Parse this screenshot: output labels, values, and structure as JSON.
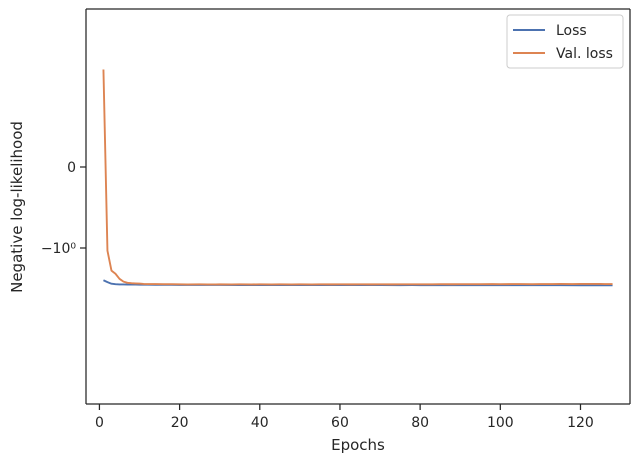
{
  "chart_data": {
    "type": "line",
    "title": "",
    "xlabel": "Epochs",
    "ylabel": "Negative log-likelihood",
    "xlim": [
      -3.35,
      132.35
    ],
    "x_ticks": [
      0,
      20,
      40,
      60,
      80,
      100,
      120
    ],
    "x_tick_labels": [
      "0",
      "20",
      "40",
      "60",
      "80",
      "100",
      "120"
    ],
    "y_scale": "symlog (linear threshold 1)",
    "y_ticks": [
      0,
      -1
    ],
    "y_tick_labels": [
      "0",
      "−10⁰"
    ],
    "grid": false,
    "legend_position": "top-right",
    "series": [
      {
        "name": "Loss",
        "color": "#4c72b0",
        "x": [
          1,
          2,
          3,
          4,
          5,
          6,
          7,
          8,
          9,
          10,
          11,
          12,
          14,
          16,
          18,
          20,
          22,
          25,
          30,
          35,
          40,
          45,
          50,
          55,
          60,
          65,
          70,
          75,
          78,
          80,
          85,
          90,
          95,
          100,
          105,
          110,
          115,
          120,
          125,
          128
        ],
        "y": [
          -2.5,
          -2.64,
          -2.76,
          -2.8,
          -2.815,
          -2.82,
          -2.825,
          -2.828,
          -2.831,
          -2.834,
          -2.836,
          -2.838,
          -2.842,
          -2.846,
          -2.849,
          -2.852,
          -2.854,
          -2.857,
          -2.86,
          -2.862,
          -2.864,
          -2.866,
          -2.868,
          -2.869,
          -2.87,
          -2.871,
          -2.872,
          -2.873,
          -2.868,
          -2.874,
          -2.875,
          -2.876,
          -2.877,
          -2.878,
          -2.879,
          -2.88,
          -2.881,
          -2.882,
          -2.883,
          -2.884
        ]
      },
      {
        "name": "Val. loss",
        "color": "#dd8452",
        "x": [
          1,
          2,
          3,
          4,
          5,
          6,
          7,
          8,
          9,
          10,
          11,
          12,
          14,
          16,
          18,
          20,
          22,
          25,
          27,
          29,
          30,
          33,
          35,
          38,
          40,
          43,
          45,
          48,
          50,
          53,
          55,
          58,
          60,
          63,
          65,
          68,
          70,
          73,
          75,
          78,
          80,
          83,
          85,
          88,
          90,
          93,
          95,
          98,
          100,
          103,
          105,
          108,
          110,
          113,
          115,
          118,
          120,
          122,
          125,
          126,
          127,
          128
        ],
        "y": [
          1.6,
          -1.08,
          -1.9,
          -2.08,
          -2.4,
          -2.6,
          -2.69,
          -2.72,
          -2.735,
          -2.75,
          -2.78,
          -2.79,
          -2.79,
          -2.795,
          -2.8,
          -2.81,
          -2.815,
          -2.81,
          -2.82,
          -2.815,
          -2.81,
          -2.82,
          -2.81,
          -2.815,
          -2.81,
          -2.815,
          -2.81,
          -2.82,
          -2.81,
          -2.815,
          -2.81,
          -2.812,
          -2.81,
          -2.812,
          -2.81,
          -2.812,
          -2.81,
          -2.812,
          -2.81,
          -2.806,
          -2.81,
          -2.804,
          -2.8,
          -2.802,
          -2.8,
          -2.795,
          -2.8,
          -2.79,
          -2.8,
          -2.79,
          -2.79,
          -2.795,
          -2.785,
          -2.79,
          -2.78,
          -2.785,
          -2.78,
          -2.78,
          -2.775,
          -2.79,
          -2.785,
          -2.79
        ]
      }
    ]
  }
}
